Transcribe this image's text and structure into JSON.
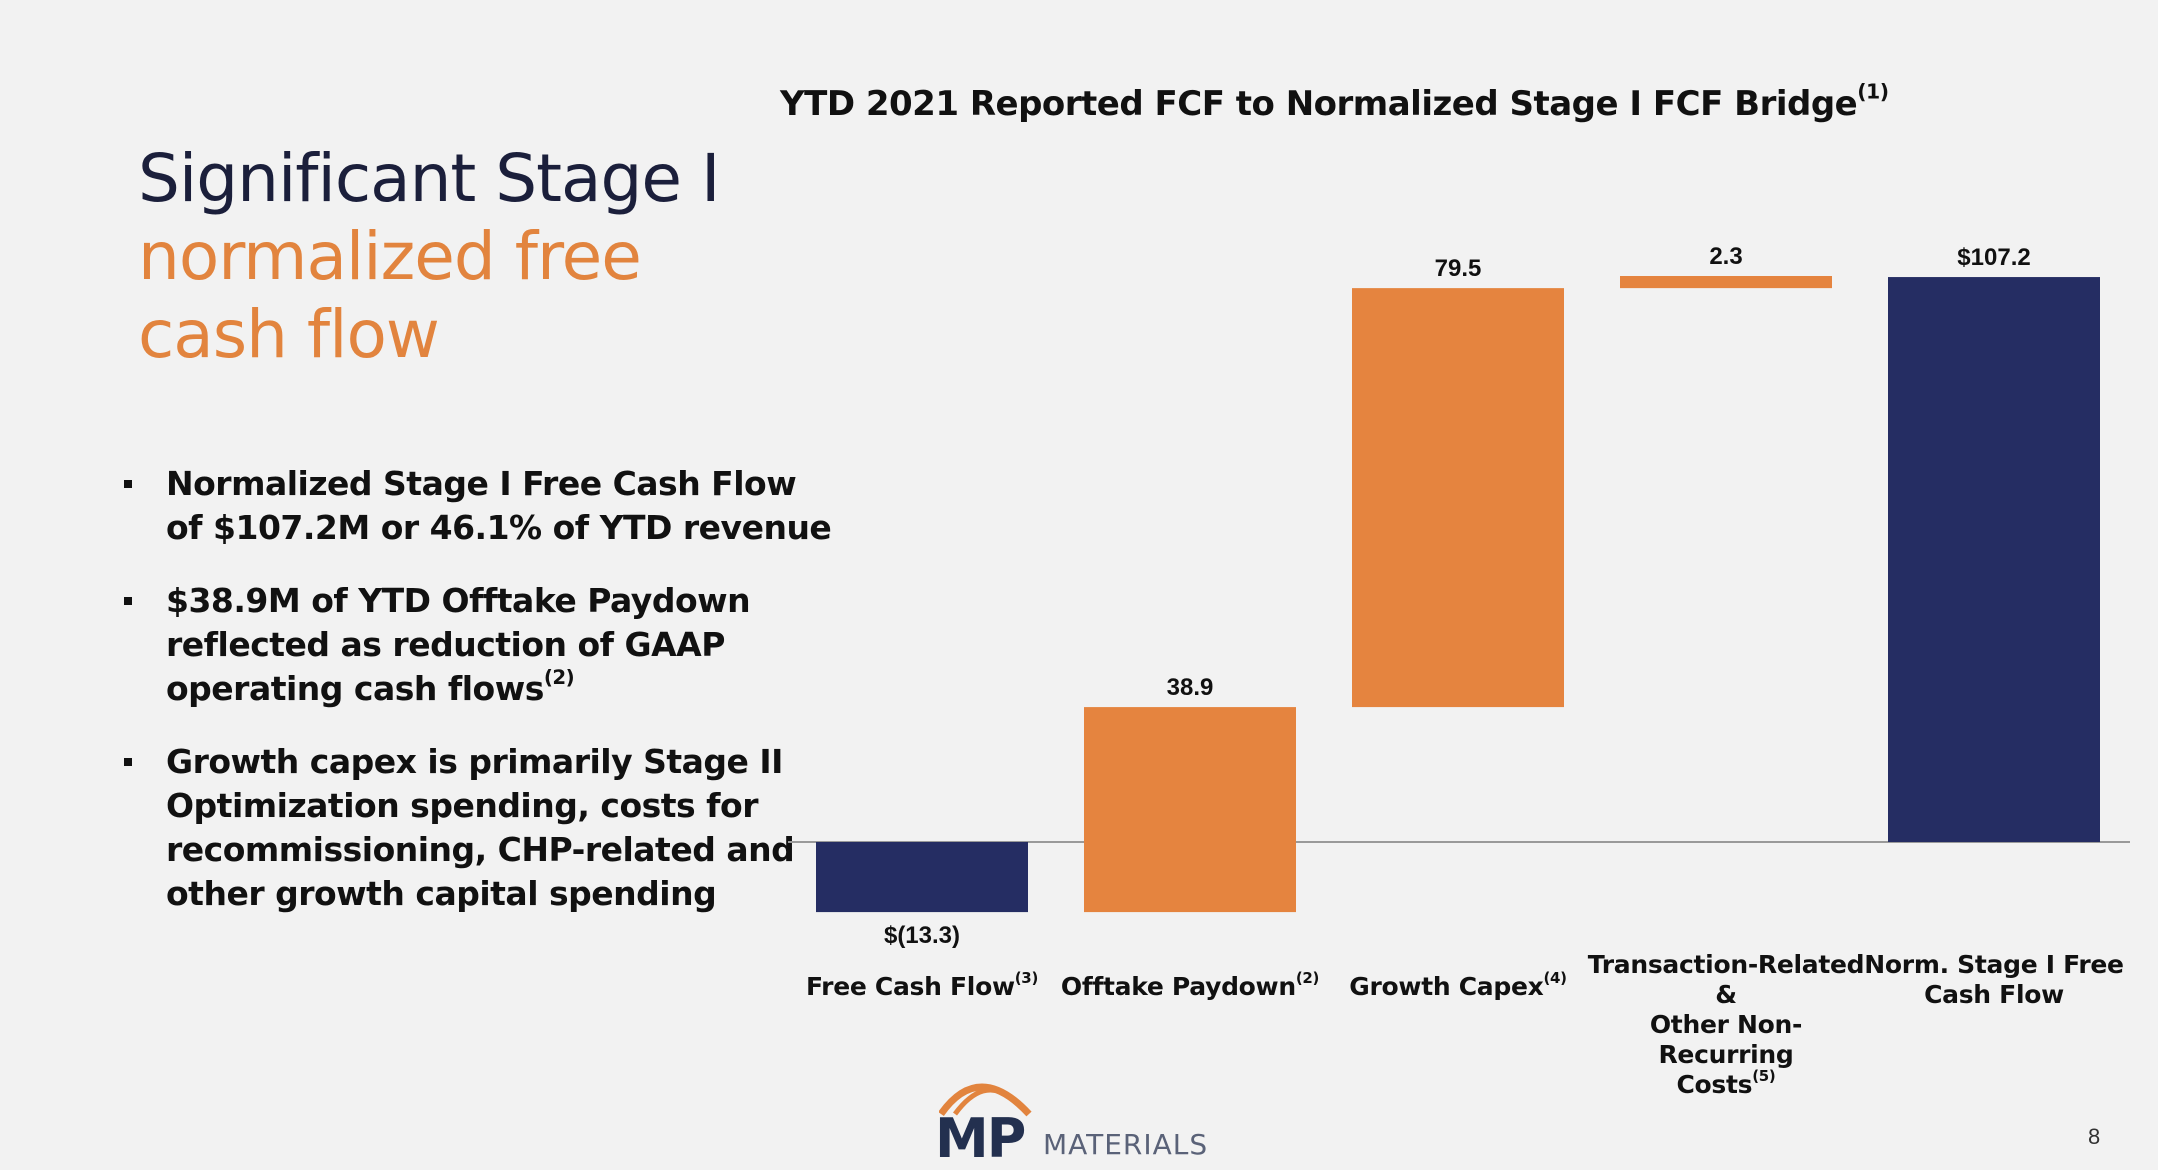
{
  "heading": {
    "line1": "Significant Stage I",
    "line2": "normalized free",
    "line3": "cash flow"
  },
  "bullets": [
    {
      "lines": [
        "Normalized Stage I Free Cash Flow",
        "of $107.2M or 46.1% of YTD revenue"
      ],
      "footnote": ""
    },
    {
      "lines": [
        "$38.9M of YTD Offtake Paydown",
        "reflected as reduction of GAAP",
        "operating cash flows"
      ],
      "footnote": "(2)"
    },
    {
      "lines": [
        "Growth capex is primarily Stage II",
        "Optimization spending, costs for",
        "recommissioning, CHP-related and",
        "other growth capital spending"
      ],
      "footnote": ""
    }
  ],
  "chart_data": {
    "type": "bar",
    "subtype": "waterfall",
    "title": "YTD 2021 Reported FCF to Normalized Stage I FCF Bridge",
    "title_footnote": "(1)",
    "categories": [
      {
        "lines": [
          "Free Cash Flow"
        ],
        "footnote": "(3)"
      },
      {
        "lines": [
          "Offtake Paydown"
        ],
        "footnote": "(2)"
      },
      {
        "lines": [
          "Growth Capex"
        ],
        "footnote": "(4)"
      },
      {
        "lines": [
          "Transaction-Related &",
          "Other Non-Recurring",
          "Costs"
        ],
        "footnote": "(5)"
      },
      {
        "lines": [
          "Norm. Stage I Free",
          "Cash Flow"
        ],
        "footnote": ""
      }
    ],
    "values": [
      -13.3,
      38.9,
      79.5,
      2.3,
      107.2
    ],
    "kinds": [
      "total",
      "increment",
      "increment",
      "increment",
      "total"
    ],
    "value_labels": [
      "$(13.3)",
      "38.9",
      "79.5",
      "2.3",
      "$107.2"
    ],
    "colors": {
      "total": "#252d63",
      "increment": "#e5843f"
    },
    "xlabel": "",
    "ylabel": "",
    "grid": false,
    "legend": "none"
  },
  "logo": {
    "mp": "MP",
    "materials": "MATERIALS"
  },
  "page_number": "8"
}
